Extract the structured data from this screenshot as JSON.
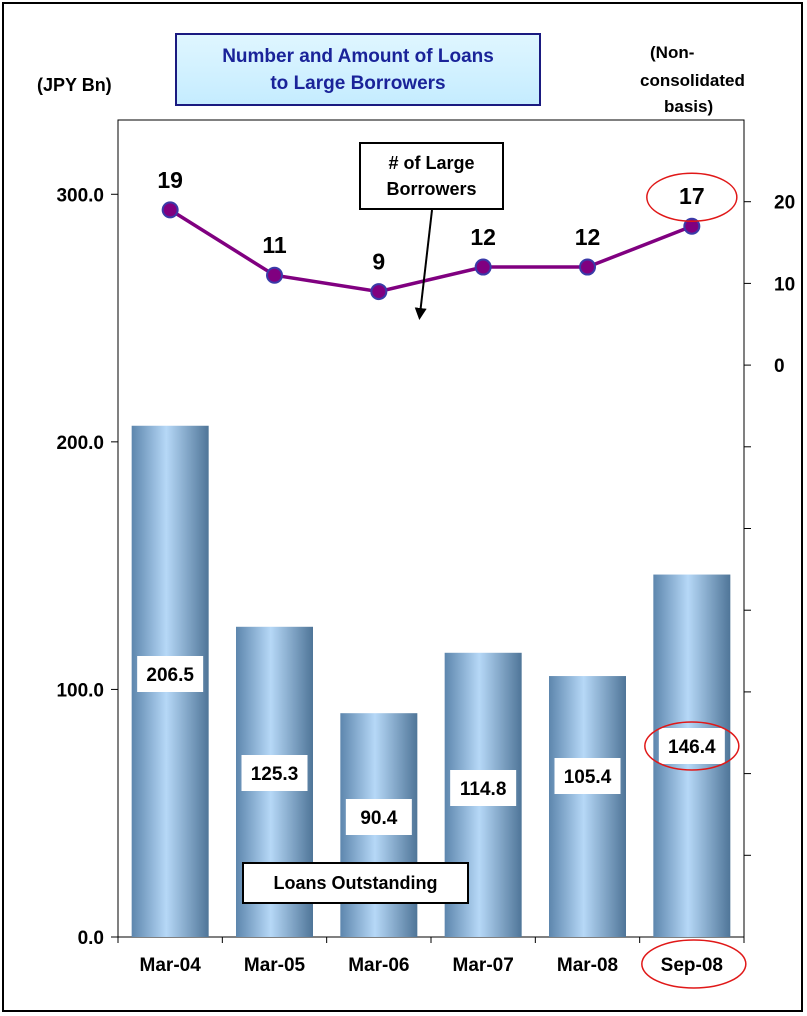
{
  "title": {
    "line1": "Number and Amount of Loans",
    "line2": "to Large Borrowers"
  },
  "left_unit": "(JPY Bn)",
  "right_note": {
    "line1": "(Non-",
    "line2": "consolidated",
    "line3": "basis)"
  },
  "callouts": {
    "borrowers_line1": "# of Large",
    "borrowers_line2": "Borrowers",
    "loans": "Loans Outstanding"
  },
  "colors": {
    "bar_light": "#b6d8f7",
    "bar_dark": "#5d86ad",
    "line": "#800080",
    "marker": "#3a3aa8",
    "highlight": "#e01818"
  },
  "chart_data": {
    "type": "bar+line",
    "categories": [
      "Mar-04",
      "Mar-05",
      "Mar-06",
      "Mar-07",
      "Mar-08",
      "Sep-08"
    ],
    "series": [
      {
        "name": "Loans Outstanding",
        "type": "bar",
        "axis": "left",
        "values": [
          206.5,
          125.3,
          90.4,
          114.8,
          105.4,
          146.4
        ],
        "labels": [
          "206.5",
          "125.3",
          "90.4",
          "114.8",
          "105.4",
          "146.4"
        ]
      },
      {
        "name": "# of Large Borrowers",
        "type": "line",
        "axis": "right",
        "values": [
          19,
          11,
          9,
          12,
          12,
          17
        ],
        "labels": [
          "19",
          "11",
          "9",
          "12",
          "12",
          "17"
        ]
      }
    ],
    "left_axis": {
      "ticks": [
        "0.0",
        "100.0",
        "200.0",
        "300.0"
      ],
      "ylim": [
        0,
        330
      ]
    },
    "right_axis": {
      "ticks": [
        "0",
        "10",
        "20"
      ],
      "ylim": [
        -70,
        30
      ]
    },
    "highlighted_category": "Sep-08",
    "grid": false,
    "legend": "none"
  }
}
